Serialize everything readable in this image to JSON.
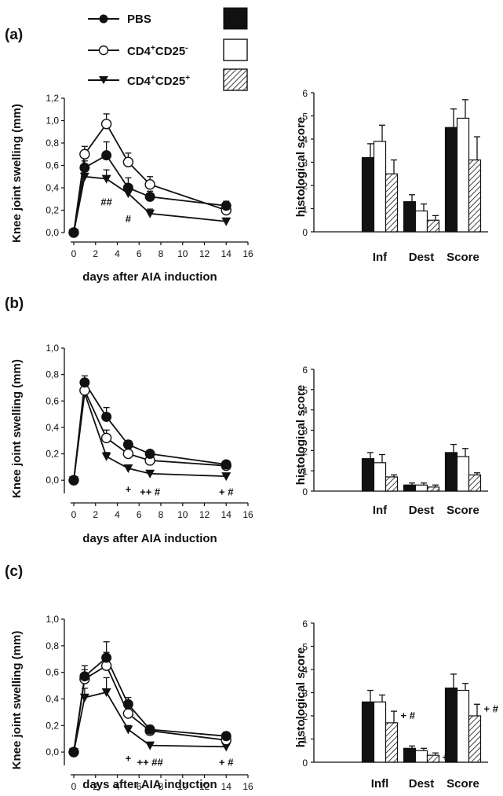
{
  "legend": {
    "items": [
      {
        "label": "PBS",
        "marker": "filled-circle",
        "bar": "solid"
      },
      {
        "label_main": "CD4",
        "label_sup1": "+",
        "label_mid": "CD25",
        "label_sup2": "-",
        "marker": "open-circle",
        "bar": "open"
      },
      {
        "label_main": "CD4",
        "label_sup1": "+",
        "label_mid": "CD25",
        "label_sup2": "+",
        "marker": "filled-triangle",
        "bar": "hatched"
      }
    ]
  },
  "colors": {
    "ink": "#111111",
    "background": "#ffffff"
  },
  "chart_data": [
    {
      "panel": "(a)",
      "type": "line",
      "xlabel": "days after AIA induction",
      "ylabel": "Knee joint swelling (mm)",
      "xlim": [
        0,
        16
      ],
      "ylim": [
        0,
        1.2
      ],
      "xticks": [
        "0",
        "2",
        "4",
        "6",
        "8",
        "10",
        "12",
        "14",
        "16"
      ],
      "yticks": [
        "0,0",
        "0,2",
        "0,4",
        "0,6",
        "0,8",
        "1,0",
        "1,2"
      ],
      "x": [
        0,
        1,
        3,
        5,
        7,
        14
      ],
      "series": [
        {
          "name": "PBS",
          "marker": "filled-circle",
          "values": [
            0.0,
            0.58,
            0.69,
            0.4,
            0.32,
            0.24
          ],
          "err": [
            0,
            0.06,
            0.12,
            0.09,
            0.05,
            0.04
          ]
        },
        {
          "name": "CD4+CD25-",
          "marker": "open-circle",
          "values": [
            0.0,
            0.7,
            0.97,
            0.63,
            0.43,
            0.2
          ],
          "err": [
            0,
            0.07,
            0.09,
            0.08,
            0.07,
            0.04
          ]
        },
        {
          "name": "CD4+CD25+",
          "marker": "filled-triangle",
          "values": [
            0.0,
            0.5,
            0.48,
            0.35,
            0.17,
            0.1
          ],
          "err": [
            0,
            0.06,
            0.08,
            0.06,
            0.04,
            0.02
          ]
        }
      ],
      "annotations": [
        {
          "text": "##",
          "x": 3.0,
          "y": 0.27
        },
        {
          "text": "#",
          "x": 5.0,
          "y": 0.12
        }
      ]
    },
    {
      "panel": "(a)",
      "type": "bar",
      "ylabel": "histological score",
      "ylim": [
        0,
        6
      ],
      "yticks": [
        "0",
        "1",
        "2",
        "3",
        "4",
        "5",
        "6"
      ],
      "categories": [
        "Inf",
        "Dest",
        "Score"
      ],
      "series": [
        {
          "name": "PBS",
          "values": [
            3.2,
            1.3,
            4.5
          ],
          "err": [
            0.6,
            0.3,
            0.8
          ]
        },
        {
          "name": "CD4+CD25-",
          "values": [
            3.9,
            0.9,
            4.9
          ],
          "err": [
            0.7,
            0.3,
            0.8
          ]
        },
        {
          "name": "CD4+CD25+",
          "values": [
            2.5,
            0.5,
            3.1
          ],
          "err": [
            0.6,
            0.2,
            1.0
          ]
        }
      ]
    },
    {
      "panel": "(b)",
      "type": "line",
      "xlabel": "days after AIA induction",
      "ylabel": "Knee joint swelling (mm)",
      "xlim": [
        0,
        16
      ],
      "ylim": [
        -0.1,
        1.0
      ],
      "xticks": [
        "0",
        "2",
        "4",
        "6",
        "8",
        "10",
        "12",
        "14",
        "16"
      ],
      "yticks": [
        "0,0",
        "0,2",
        "0,4",
        "0,6",
        "0,8",
        "1,0"
      ],
      "x": [
        0,
        1,
        3,
        5,
        7,
        14
      ],
      "series": [
        {
          "name": "PBS",
          "marker": "filled-circle",
          "values": [
            0.0,
            0.74,
            0.48,
            0.27,
            0.2,
            0.12
          ],
          "err": [
            0,
            0.05,
            0.07,
            0.03,
            0.02,
            0.02
          ]
        },
        {
          "name": "CD4+CD25-",
          "marker": "open-circle",
          "values": [
            0.0,
            0.68,
            0.32,
            0.2,
            0.15,
            0.11
          ],
          "err": [
            0,
            0.05,
            0.06,
            0.04,
            0.03,
            0.02
          ]
        },
        {
          "name": "CD4+CD25+",
          "marker": "filled-triangle",
          "values": [
            0.0,
            0.66,
            0.18,
            0.09,
            0.05,
            0.03
          ],
          "err": [
            0,
            0.05,
            0.03,
            0.02,
            0.02,
            0.01
          ]
        }
      ],
      "annotations": [
        {
          "text": "+",
          "x": 5.0,
          "y": -0.07
        },
        {
          "text": "++ #",
          "x": 7.0,
          "y": -0.09
        },
        {
          "text": "+ #",
          "x": 14.0,
          "y": -0.09
        }
      ]
    },
    {
      "panel": "(b)",
      "type": "bar",
      "ylabel": "histological score",
      "ylim": [
        0,
        6
      ],
      "yticks": [
        "0",
        "1",
        "2",
        "3",
        "4",
        "5",
        "6"
      ],
      "categories": [
        "Inf",
        "Dest",
        "Score"
      ],
      "series": [
        {
          "name": "PBS",
          "values": [
            1.6,
            0.3,
            1.9
          ],
          "err": [
            0.3,
            0.1,
            0.4
          ]
        },
        {
          "name": "CD4+CD25-",
          "values": [
            1.4,
            0.3,
            1.7
          ],
          "err": [
            0.4,
            0.1,
            0.4
          ]
        },
        {
          "name": "CD4+CD25+",
          "values": [
            0.7,
            0.2,
            0.8
          ],
          "err": [
            0.1,
            0.1,
            0.1
          ]
        }
      ]
    },
    {
      "panel": "(c)",
      "type": "line",
      "xlabel": "days after AIA induction",
      "ylabel": "Knee joint swelling (mm)",
      "xlim": [
        0,
        16
      ],
      "ylim": [
        -0.1,
        1.0
      ],
      "xticks": [
        "0",
        "2",
        "4",
        "6",
        "8",
        "10",
        "12",
        "14",
        "16"
      ],
      "yticks": [
        "0,0",
        "0,2",
        "0,4",
        "0,6",
        "0,8",
        "1,0"
      ],
      "x": [
        0,
        1,
        3,
        5,
        7,
        14
      ],
      "series": [
        {
          "name": "PBS",
          "marker": "filled-circle",
          "values": [
            0.0,
            0.57,
            0.71,
            0.36,
            0.17,
            0.12
          ],
          "err": [
            0,
            0.08,
            0.12,
            0.05,
            0.03,
            0.03
          ]
        },
        {
          "name": "CD4+CD25-",
          "marker": "open-circle",
          "values": [
            0.0,
            0.55,
            0.65,
            0.29,
            0.16,
            0.09
          ],
          "err": [
            0,
            0.07,
            0.1,
            0.05,
            0.03,
            0.03
          ]
        },
        {
          "name": "CD4+CD25+",
          "marker": "filled-triangle",
          "values": [
            0.0,
            0.41,
            0.45,
            0.17,
            0.05,
            0.04
          ],
          "err": [
            0,
            0.07,
            0.11,
            0.03,
            0.01,
            0.01
          ]
        }
      ],
      "annotations": [
        {
          "text": "+",
          "x": 5.0,
          "y": -0.05
        },
        {
          "text": "++ ##",
          "x": 7.0,
          "y": -0.08
        },
        {
          "text": "+ #",
          "x": 14.0,
          "y": -0.08
        }
      ]
    },
    {
      "panel": "(c)",
      "type": "bar",
      "ylabel": "histological score",
      "ylim": [
        0,
        6
      ],
      "yticks": [
        "0",
        "1",
        "2",
        "3",
        "4",
        "5",
        "6"
      ],
      "categories": [
        "Infl",
        "Dest",
        "Score"
      ],
      "series": [
        {
          "name": "PBS",
          "values": [
            2.6,
            0.6,
            3.2
          ],
          "err": [
            0.5,
            0.1,
            0.6
          ]
        },
        {
          "name": "CD4+CD25-",
          "values": [
            2.6,
            0.5,
            3.1
          ],
          "err": [
            0.3,
            0.1,
            0.3
          ]
        },
        {
          "name": "CD4+CD25+",
          "values": [
            1.7,
            0.3,
            2.0
          ],
          "err": [
            0.5,
            0.1,
            0.5
          ]
        }
      ],
      "annotations": [
        {
          "text": "+ #",
          "category": 0,
          "series": 2
        },
        {
          "text": "+",
          "category": 1,
          "series": 2
        },
        {
          "text": "+ #",
          "category": 2,
          "series": 2
        }
      ]
    }
  ]
}
